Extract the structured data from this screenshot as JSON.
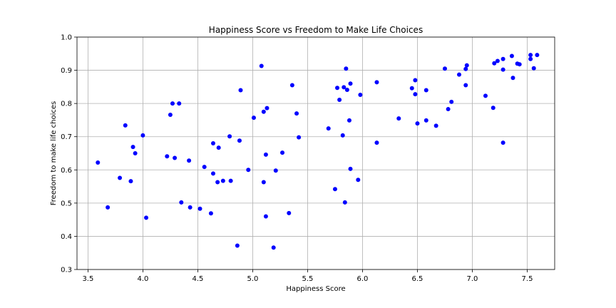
{
  "chart_data": {
    "type": "scatter",
    "title": "Happiness Score vs Freedom to Make Life Choices",
    "xlabel": "Happiness Score",
    "ylabel": "Freedom to make life choices",
    "xlim": [
      3.4,
      7.75
    ],
    "ylim": [
      0.3,
      1.0
    ],
    "xticks": [
      3.5,
      4.0,
      4.5,
      5.0,
      5.5,
      6.0,
      6.5,
      7.0,
      7.5
    ],
    "xtick_labels": [
      "3.5",
      "4.0",
      "4.5",
      "5.0",
      "5.5",
      "6.0",
      "6.5",
      "7.0",
      "7.5"
    ],
    "yticks": [
      0.3,
      0.4,
      0.5,
      0.6,
      0.7,
      0.8,
      0.9,
      1.0
    ],
    "ytick_labels": [
      "0.3",
      "0.4",
      "0.5",
      "0.6",
      "0.7",
      "0.8",
      "0.9",
      "1.0"
    ],
    "grid": true,
    "color": "#0000ff",
    "points": [
      {
        "x": 3.59,
        "y": 0.622
      },
      {
        "x": 3.68,
        "y": 0.487
      },
      {
        "x": 3.79,
        "y": 0.576
      },
      {
        "x": 3.84,
        "y": 0.734
      },
      {
        "x": 3.89,
        "y": 0.566
      },
      {
        "x": 3.91,
        "y": 0.669
      },
      {
        "x": 3.93,
        "y": 0.65
      },
      {
        "x": 4.0,
        "y": 0.704
      },
      {
        "x": 4.03,
        "y": 0.456
      },
      {
        "x": 4.22,
        "y": 0.641
      },
      {
        "x": 4.25,
        "y": 0.766
      },
      {
        "x": 4.27,
        "y": 0.8
      },
      {
        "x": 4.29,
        "y": 0.636
      },
      {
        "x": 4.33,
        "y": 0.8
      },
      {
        "x": 4.35,
        "y": 0.502
      },
      {
        "x": 4.42,
        "y": 0.628
      },
      {
        "x": 4.43,
        "y": 0.487
      },
      {
        "x": 4.52,
        "y": 0.483
      },
      {
        "x": 4.56,
        "y": 0.609
      },
      {
        "x": 4.62,
        "y": 0.469
      },
      {
        "x": 4.64,
        "y": 0.68
      },
      {
        "x": 4.64,
        "y": 0.589
      },
      {
        "x": 4.68,
        "y": 0.563
      },
      {
        "x": 4.69,
        "y": 0.667
      },
      {
        "x": 4.73,
        "y": 0.567
      },
      {
        "x": 4.79,
        "y": 0.701
      },
      {
        "x": 4.8,
        "y": 0.567
      },
      {
        "x": 4.86,
        "y": 0.372
      },
      {
        "x": 4.88,
        "y": 0.688
      },
      {
        "x": 4.89,
        "y": 0.84
      },
      {
        "x": 4.96,
        "y": 0.6
      },
      {
        "x": 5.01,
        "y": 0.757
      },
      {
        "x": 5.08,
        "y": 0.913
      },
      {
        "x": 5.1,
        "y": 0.775
      },
      {
        "x": 5.1,
        "y": 0.563
      },
      {
        "x": 5.12,
        "y": 0.646
      },
      {
        "x": 5.12,
        "y": 0.46
      },
      {
        "x": 5.13,
        "y": 0.786
      },
      {
        "x": 5.19,
        "y": 0.366
      },
      {
        "x": 5.21,
        "y": 0.598
      },
      {
        "x": 5.27,
        "y": 0.652
      },
      {
        "x": 5.33,
        "y": 0.47
      },
      {
        "x": 5.36,
        "y": 0.855
      },
      {
        "x": 5.4,
        "y": 0.77
      },
      {
        "x": 5.42,
        "y": 0.698
      },
      {
        "x": 5.69,
        "y": 0.725
      },
      {
        "x": 5.75,
        "y": 0.542
      },
      {
        "x": 5.77,
        "y": 0.847
      },
      {
        "x": 5.79,
        "y": 0.811
      },
      {
        "x": 5.82,
        "y": 0.704
      },
      {
        "x": 5.83,
        "y": 0.849
      },
      {
        "x": 5.84,
        "y": 0.502
      },
      {
        "x": 5.85,
        "y": 0.905
      },
      {
        "x": 5.86,
        "y": 0.841
      },
      {
        "x": 5.88,
        "y": 0.749
      },
      {
        "x": 5.89,
        "y": 0.86
      },
      {
        "x": 5.89,
        "y": 0.603
      },
      {
        "x": 5.96,
        "y": 0.57
      },
      {
        "x": 5.98,
        "y": 0.826
      },
      {
        "x": 6.13,
        "y": 0.864
      },
      {
        "x": 6.13,
        "y": 0.682
      },
      {
        "x": 6.33,
        "y": 0.755
      },
      {
        "x": 6.45,
        "y": 0.846
      },
      {
        "x": 6.48,
        "y": 0.87
      },
      {
        "x": 6.48,
        "y": 0.828
      },
      {
        "x": 6.5,
        "y": 0.74
      },
      {
        "x": 6.58,
        "y": 0.84
      },
      {
        "x": 6.58,
        "y": 0.749
      },
      {
        "x": 6.67,
        "y": 0.733
      },
      {
        "x": 6.75,
        "y": 0.905
      },
      {
        "x": 6.78,
        "y": 0.783
      },
      {
        "x": 6.81,
        "y": 0.805
      },
      {
        "x": 6.88,
        "y": 0.887
      },
      {
        "x": 6.94,
        "y": 0.904
      },
      {
        "x": 6.94,
        "y": 0.855
      },
      {
        "x": 6.95,
        "y": 0.915
      },
      {
        "x": 7.12,
        "y": 0.823
      },
      {
        "x": 7.19,
        "y": 0.787
      },
      {
        "x": 7.2,
        "y": 0.921
      },
      {
        "x": 7.23,
        "y": 0.928
      },
      {
        "x": 7.28,
        "y": 0.934
      },
      {
        "x": 7.28,
        "y": 0.902
      },
      {
        "x": 7.28,
        "y": 0.682
      },
      {
        "x": 7.36,
        "y": 0.943
      },
      {
        "x": 7.37,
        "y": 0.877
      },
      {
        "x": 7.41,
        "y": 0.92
      },
      {
        "x": 7.43,
        "y": 0.918
      },
      {
        "x": 7.53,
        "y": 0.946
      },
      {
        "x": 7.53,
        "y": 0.934
      },
      {
        "x": 7.56,
        "y": 0.906
      },
      {
        "x": 7.59,
        "y": 0.946
      }
    ]
  }
}
